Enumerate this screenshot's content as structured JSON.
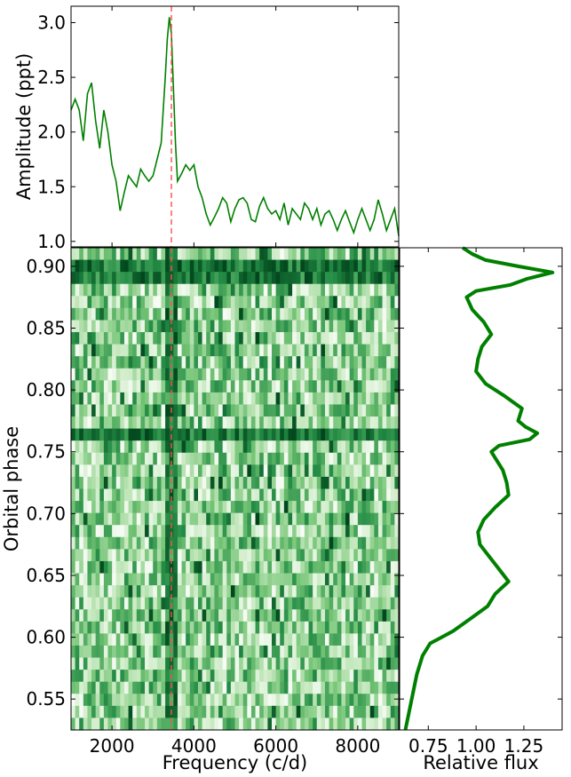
{
  "chart_data": [
    {
      "panel": "periodogram",
      "type": "line",
      "ylabel": "Amplitude (ppt)",
      "xlim": [
        1000,
        9000
      ],
      "ylim": [
        0.95,
        3.15
      ],
      "yticks": [
        "1.0",
        "1.5",
        "2.0",
        "2.5",
        "3.0"
      ],
      "color": "#008000",
      "marker_line": {
        "x": 3450,
        "color": "#ff4d4d",
        "style": "dashed"
      },
      "series": [
        {
          "x": [
            1000,
            1100,
            1200,
            1300,
            1400,
            1500,
            1600,
            1700,
            1800,
            1900,
            2000,
            2100,
            2200,
            2300,
            2400,
            2500,
            2600,
            2700,
            2800,
            2900,
            3000,
            3100,
            3200,
            3300,
            3350,
            3400,
            3450,
            3500,
            3550,
            3600,
            3700,
            3800,
            3900,
            4000,
            4100,
            4200,
            4300,
            4400,
            4500,
            4600,
            4700,
            4800,
            4900,
            5000,
            5100,
            5200,
            5300,
            5400,
            5500,
            5600,
            5700,
            5800,
            5900,
            6000,
            6100,
            6200,
            6300,
            6400,
            6500,
            6600,
            6700,
            6800,
            6900,
            7000,
            7100,
            7200,
            7300,
            7400,
            7500,
            7600,
            7700,
            7800,
            7900,
            8000,
            8100,
            8200,
            8300,
            8400,
            8500,
            8600,
            8700,
            8800,
            8900,
            9000
          ],
          "y": [
            2.2,
            2.3,
            2.2,
            1.92,
            2.35,
            2.45,
            2.1,
            1.85,
            2.2,
            2.0,
            1.7,
            1.55,
            1.28,
            1.45,
            1.6,
            1.55,
            1.5,
            1.66,
            1.6,
            1.55,
            1.6,
            1.75,
            1.9,
            2.5,
            2.85,
            3.05,
            2.9,
            2.4,
            1.9,
            1.55,
            1.62,
            1.7,
            1.65,
            1.7,
            1.5,
            1.4,
            1.25,
            1.15,
            1.22,
            1.3,
            1.4,
            1.35,
            1.18,
            1.3,
            1.38,
            1.4,
            1.35,
            1.2,
            1.18,
            1.32,
            1.4,
            1.3,
            1.25,
            1.28,
            1.2,
            1.35,
            1.15,
            1.3,
            1.25,
            1.2,
            1.35,
            1.3,
            1.2,
            1.3,
            1.15,
            1.25,
            1.28,
            1.2,
            1.1,
            1.2,
            1.28,
            1.18,
            1.08,
            1.2,
            1.3,
            1.2,
            1.1,
            1.2,
            1.38,
            1.25,
            1.1,
            1.2,
            1.3,
            1.05
          ]
        }
      ]
    },
    {
      "panel": "dynamic-spectrum",
      "type": "heatmap",
      "xlabel": "Frequency (c/d)",
      "ylabel": "Orbital phase",
      "xlim": [
        1000,
        9000
      ],
      "ylim": [
        0.525,
        0.915
      ],
      "xticks": [
        "2000",
        "4000",
        "6000",
        "8000"
      ],
      "yticks": [
        "0.55",
        "0.60",
        "0.65",
        "0.70",
        "0.75",
        "0.80",
        "0.85",
        "0.90"
      ],
      "colormap": "Greens",
      "phase_rows": 40,
      "freq_cols": 80,
      "strong_features": [
        {
          "freq": 3450,
          "note": "persistent vertical ridge"
        },
        {
          "phase": 0.765,
          "note": "bright horizontal band"
        },
        {
          "phase": 0.895,
          "note": "bright horizontal band"
        }
      ]
    },
    {
      "panel": "light-curve",
      "type": "line",
      "xlabel": "Relative flux",
      "xticks": [
        "0.75",
        "1.00",
        "1.25"
      ],
      "xlim": [
        0.6,
        1.45
      ],
      "ylim": [
        0.525,
        0.915
      ],
      "color": "#008000",
      "series": [
        {
          "phase": [
            0.525,
            0.54,
            0.555,
            0.57,
            0.585,
            0.595,
            0.6,
            0.605,
            0.615,
            0.625,
            0.635,
            0.645,
            0.655,
            0.665,
            0.675,
            0.685,
            0.695,
            0.705,
            0.715,
            0.725,
            0.735,
            0.745,
            0.75,
            0.755,
            0.76,
            0.765,
            0.77,
            0.775,
            0.785,
            0.795,
            0.805,
            0.815,
            0.825,
            0.835,
            0.845,
            0.855,
            0.865,
            0.875,
            0.88,
            0.885,
            0.89,
            0.895,
            0.9,
            0.905,
            0.91,
            0.915
          ],
          "flux": [
            0.63,
            0.65,
            0.67,
            0.69,
            0.72,
            0.76,
            0.82,
            0.88,
            0.97,
            1.06,
            1.1,
            1.17,
            1.12,
            1.07,
            1.02,
            1.01,
            1.04,
            1.1,
            1.17,
            1.16,
            1.14,
            1.1,
            1.08,
            1.12,
            1.28,
            1.32,
            1.26,
            1.22,
            1.24,
            1.15,
            1.05,
            1.0,
            1.01,
            1.03,
            1.08,
            1.04,
            0.98,
            0.95,
            1.0,
            1.18,
            1.27,
            1.4,
            1.22,
            1.05,
            0.98,
            0.93
          ]
        }
      ]
    }
  ]
}
